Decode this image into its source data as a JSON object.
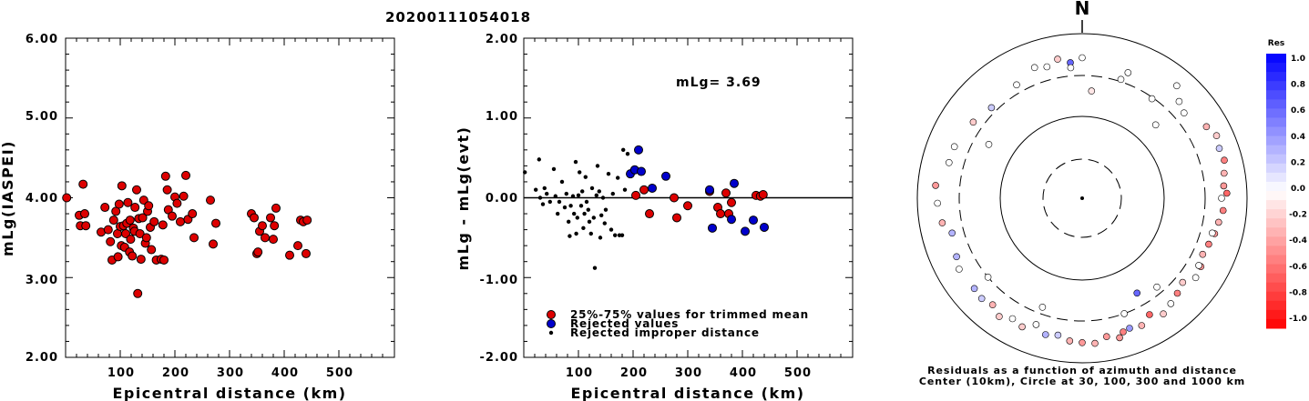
{
  "title": "20200111054018",
  "panel1": {
    "ylabel": "mLg(IASPEI)",
    "xlabel": "Epicentral distance (km)",
    "yticks": [
      "6.00",
      "5.00",
      "4.00",
      "3.00",
      "2.00"
    ],
    "xticks": [
      "100",
      "200",
      "300",
      "400",
      "500"
    ]
  },
  "panel2": {
    "ylabel": "mLg - mLg(evt)",
    "xlabel": "Epicentral distance (km)",
    "yticks": [
      "2.00",
      "1.00",
      "0.00",
      "-1.00",
      "-2.00"
    ],
    "xticks": [
      "100",
      "200",
      "300",
      "400",
      "500"
    ],
    "annotation": "mLg= 3.69",
    "legend": [
      "25%-75% values for trimmed mean",
      "Rejected values",
      "Rejected improper distance"
    ]
  },
  "polar": {
    "north_label": "N",
    "caption_line1": "Residuals as a function of azimuth and distance",
    "caption_line2": "Center (10km), Circle at 30, 100, 300 and 1000 km"
  },
  "colorbar": {
    "title": "Res",
    "labels": [
      "1.0",
      "0.8",
      "0.6",
      "0.4",
      "0.2",
      "0.0",
      "-0.2",
      "-0.4",
      "-0.6",
      "-0.8",
      "-1.0"
    ]
  },
  "colors": {
    "trimmed": "#dd0000",
    "rejected": "#0000cc",
    "improper": "#000000"
  },
  "chart_data": [
    {
      "type": "scatter",
      "title": "20200111054018",
      "xlabel": "Epicentral distance (km)",
      "ylabel": "mLg(IASPEI)",
      "xlim": [
        0,
        600
      ],
      "ylim": [
        2.0,
        6.0
      ],
      "series": [
        {
          "points": [
            [
              2,
              4.0
            ],
            [
              25,
              3.78
            ],
            [
              27,
              3.65
            ],
            [
              32,
              4.17
            ],
            [
              35,
              3.8
            ],
            [
              37,
              3.65
            ],
            [
              65,
              3.57
            ],
            [
              72,
              3.88
            ],
            [
              78,
              3.6
            ],
            [
              82,
              3.45
            ],
            [
              85,
              3.22
            ],
            [
              88,
              3.72
            ],
            [
              92,
              3.83
            ],
            [
              95,
              3.55
            ],
            [
              96,
              3.26
            ],
            [
              98,
              3.92
            ],
            [
              100,
              3.64
            ],
            [
              102,
              3.4
            ],
            [
              103,
              4.15
            ],
            [
              106,
              3.65
            ],
            [
              108,
              3.38
            ],
            [
              110,
              3.55
            ],
            [
              112,
              3.68
            ],
            [
              114,
              3.94
            ],
            [
              117,
              3.32
            ],
            [
              118,
              3.72
            ],
            [
              119,
              3.48
            ],
            [
              122,
              3.27
            ],
            [
              124,
              3.62
            ],
            [
              126,
              3.58
            ],
            [
              127,
              3.88
            ],
            [
              130,
              4.1
            ],
            [
              132,
              2.8
            ],
            [
              134,
              3.74
            ],
            [
              136,
              3.55
            ],
            [
              138,
              3.23
            ],
            [
              141,
              3.75
            ],
            [
              143,
              3.97
            ],
            [
              146,
              3.43
            ],
            [
              148,
              3.5
            ],
            [
              150,
              3.83
            ],
            [
              152,
              3.9
            ],
            [
              155,
              3.63
            ],
            [
              157,
              3.35
            ],
            [
              162,
              3.7
            ],
            [
              166,
              3.22
            ],
            [
              175,
              3.23
            ],
            [
              178,
              3.66
            ],
            [
              180,
              3.22
            ],
            [
              183,
              4.27
            ],
            [
              186,
              4.1
            ],
            [
              188,
              3.85
            ],
            [
              195,
              3.77
            ],
            [
              200,
              4.01
            ],
            [
              204,
              3.93
            ],
            [
              210,
              3.7
            ],
            [
              216,
              4.02
            ],
            [
              220,
              4.28
            ],
            [
              224,
              3.73
            ],
            [
              232,
              3.8
            ],
            [
              235,
              3.5
            ],
            [
              265,
              3.97
            ],
            [
              270,
              3.42
            ],
            [
              275,
              3.68
            ],
            [
              340,
              3.8
            ],
            [
              345,
              3.75
            ],
            [
              350,
              3.3
            ],
            [
              352,
              3.32
            ],
            [
              355,
              3.58
            ],
            [
              360,
              3.65
            ],
            [
              365,
              3.5
            ],
            [
              375,
              3.75
            ],
            [
              380,
              3.48
            ],
            [
              382,
              3.65
            ],
            [
              385,
              3.87
            ],
            [
              410,
              3.28
            ],
            [
              425,
              3.4
            ],
            [
              430,
              3.72
            ],
            [
              435,
              3.7
            ],
            [
              440,
              3.3
            ],
            [
              442,
              3.72
            ]
          ]
        }
      ]
    },
    {
      "type": "scatter",
      "xlabel": "Epicentral distance (km)",
      "ylabel": "mLg - mLg(evt)",
      "xlim": [
        0,
        600
      ],
      "ylim": [
        -2.0,
        2.0
      ],
      "annotations": [
        "mLg= 3.69"
      ],
      "series": [
        {
          "name": "25%-75% values for trimmed mean",
          "color": "#dd0000",
          "points": [
            [
              205,
              0.03
            ],
            [
              220,
              0.1
            ],
            [
              230,
              -0.2
            ],
            [
              275,
              0.0
            ],
            [
              280,
              -0.25
            ],
            [
              300,
              -0.1
            ],
            [
              340,
              0.08
            ],
            [
              355,
              -0.12
            ],
            [
              360,
              -0.2
            ],
            [
              370,
              0.06
            ],
            [
              375,
              -0.2
            ],
            [
              380,
              -0.06
            ],
            [
              425,
              0.03
            ],
            [
              433,
              0.02
            ],
            [
              438,
              0.04
            ]
          ]
        },
        {
          "name": "Rejected values",
          "color": "#0000cc",
          "points": [
            [
              195,
              0.3
            ],
            [
              203,
              0.35
            ],
            [
              210,
              0.6
            ],
            [
              215,
              0.33
            ],
            [
              235,
              0.12
            ],
            [
              260,
              0.27
            ],
            [
              340,
              0.1
            ],
            [
              345,
              -0.38
            ],
            [
              380,
              -0.27
            ],
            [
              385,
              0.18
            ],
            [
              405,
              -0.42
            ],
            [
              420,
              -0.28
            ],
            [
              440,
              -0.37
            ]
          ]
        },
        {
          "name": "Rejected improper distance",
          "color": "#000000",
          "points": [
            [
              2,
              0.32
            ],
            [
              22,
              0.1
            ],
            [
              28,
              0.48
            ],
            [
              30,
              0.0
            ],
            [
              35,
              -0.08
            ],
            [
              38,
              0.12
            ],
            [
              42,
              0.05
            ],
            [
              48,
              -0.05
            ],
            [
              55,
              0.36
            ],
            [
              58,
              0.02
            ],
            [
              62,
              -0.2
            ],
            [
              65,
              -0.05
            ],
            [
              70,
              0.2
            ],
            [
              75,
              -0.12
            ],
            [
              78,
              0.05
            ],
            [
              82,
              -0.3
            ],
            [
              84,
              -0.48
            ],
            [
              86,
              -0.1
            ],
            [
              90,
              0.02
            ],
            [
              92,
              -0.2
            ],
            [
              95,
              0.45
            ],
            [
              96,
              -0.45
            ],
            [
              98,
              -0.25
            ],
            [
              100,
              0.03
            ],
            [
              102,
              0.32
            ],
            [
              105,
              -0.1
            ],
            [
              107,
              0.08
            ],
            [
              109,
              -0.38
            ],
            [
              111,
              -0.2
            ],
            [
              113,
              0.26
            ],
            [
              115,
              -0.05
            ],
            [
              118,
              -0.15
            ],
            [
              120,
              -0.3
            ],
            [
              123,
              -0.45
            ],
            [
              125,
              0.12
            ],
            [
              128,
              -0.25
            ],
            [
              130,
              -0.88
            ],
            [
              133,
              0.03
            ],
            [
              135,
              0.4
            ],
            [
              138,
              0.08
            ],
            [
              140,
              -0.5
            ],
            [
              142,
              -0.22
            ],
            [
              145,
              0.0
            ],
            [
              148,
              -0.32
            ],
            [
              150,
              -0.15
            ],
            [
              155,
              0.3
            ],
            [
              160,
              -0.4
            ],
            [
              163,
              0.05
            ],
            [
              167,
              -0.47
            ],
            [
              172,
              0.25
            ],
            [
              175,
              -0.47
            ],
            [
              180,
              -0.47
            ],
            [
              182,
              0.6
            ],
            [
              185,
              0.1
            ],
            [
              190,
              0.55
            ]
          ]
        }
      ]
    },
    {
      "type": "scatter",
      "caption": [
        "Residuals as a function of azimuth and distance",
        "Center (10km), Circle at 30, 100, 300 and 1000 km"
      ],
      "colorbar": {
        "title": "Res",
        "range": [
          -1.0,
          1.0
        ],
        "positive": "blue",
        "negative": "red"
      },
      "series": [
        {
          "points_az_dist_res": [
            [
              5,
              200,
              -0.1
            ],
            [
              20,
              410,
              0.0
            ],
            [
              18,
              320,
              0.0
            ],
            [
              35,
              290,
              0.0
            ],
            [
              40,
              600,
              0.0
            ],
            [
              45,
              450,
              0.0
            ],
            [
              50,
              400,
              0.0
            ],
            [
              60,
              540,
              -0.3
            ],
            [
              65,
              620,
              -0.2
            ],
            [
              70,
              580,
              0.2
            ],
            [
              75,
              600,
              -0.5
            ],
            [
              80,
              550,
              -0.3
            ],
            [
              85,
              520,
              -0.4
            ],
            [
              88,
              560,
              -0.6
            ],
            [
              90,
              480,
              0.0
            ],
            [
              95,
              510,
              -0.5
            ],
            [
              100,
              470,
              -0.3
            ],
            [
              105,
              450,
              -0.4
            ],
            [
              110,
              420,
              -0.5
            ],
            [
              115,
              400,
              -0.3
            ],
            [
              120,
              450,
              -0.4
            ],
            [
              125,
              470,
              0.0
            ],
            [
              130,
              380,
              -0.2
            ],
            [
              135,
              420,
              -0.5
            ],
            [
              140,
              460,
              0.0
            ],
            [
              145,
              510,
              -0.2
            ],
            [
              150,
              420,
              -0.6
            ],
            [
              155,
              500,
              -0.3
            ],
            [
              160,
              470,
              0.4
            ],
            [
              163,
              490,
              -0.5
            ],
            [
              165,
              560,
              -0.4
            ],
            [
              170,
              500,
              -0.4
            ],
            [
              175,
              580,
              -0.3
            ],
            [
              180,
              560,
              -0.4
            ],
            [
              185,
              540,
              -0.3
            ],
            [
              190,
              480,
              0.2
            ],
            [
              195,
              510,
              0.3
            ],
            [
              200,
              420,
              0.0
            ],
            [
              205,
              520,
              -0.2
            ],
            [
              210,
              480,
              0.0
            ],
            [
              215,
              560,
              -0.2
            ],
            [
              220,
              480,
              -0.3
            ],
            [
              225,
              520,
              0.2
            ],
            [
              230,
              500,
              0.3
            ],
            [
              240,
              520,
              0.0
            ],
            [
              245,
              470,
              0.3
            ],
            [
              255,
              420,
              0.3
            ],
            [
              260,
              520,
              -0.3
            ],
            [
              268,
              560,
              0.0
            ],
            [
              275,
              600,
              -0.4
            ],
            [
              285,
              460,
              0.0
            ],
            [
              292,
              460,
              0.0
            ],
            [
              305,
              400,
              -0.2
            ],
            [
              315,
              350,
              0.2
            ],
            [
              330,
              380,
              0.0
            ],
            [
              340,
              480,
              0.0
            ],
            [
              350,
              510,
              -0.2
            ],
            [
              355,
              440,
              0.6
            ],
            [
              345,
              440,
              0.0
            ],
            [
              0,
              500,
              0.0
            ],
            [
              355,
              380,
              0.0
            ],
            [
              150,
              210,
              0.6
            ],
            [
              105,
              420,
              0.0
            ],
            [
              120,
              420,
              0.0
            ],
            [
              140,
              250,
              0.0
            ],
            [
              160,
              300,
              0.0
            ],
            [
              200,
              250,
              0.0
            ],
            [
              230,
              300,
              0.0
            ],
            [
              300,
              200,
              0.0
            ],
            [
              45,
              180,
              0.0
            ]
          ]
        }
      ]
    }
  ]
}
